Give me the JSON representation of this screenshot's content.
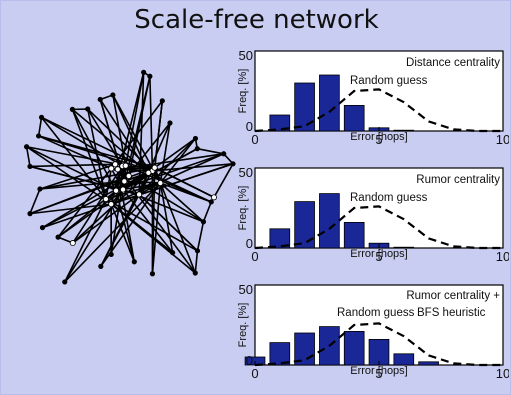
{
  "title": "Scale-free network",
  "colors": {
    "background": "#c9cdf2",
    "panel": "#ffffff",
    "bar": "#1a2796",
    "curve": "#000000"
  },
  "network": {
    "hub_count": 16,
    "peripheral_count": 32,
    "highlighted_nodes": 18
  },
  "chart_data": [
    {
      "type": "bar",
      "title": "",
      "legend": [
        "Distance centrality",
        "Random guess"
      ],
      "xlabel": "Error [hops]",
      "ylabel": "Freq. [%]",
      "xlim": [
        0,
        10
      ],
      "ylim": [
        0,
        50
      ],
      "xticks": [
        "0",
        "5",
        "10"
      ],
      "yticks": [
        "0",
        "50"
      ],
      "x": [
        1,
        2,
        3,
        4,
        5,
        6,
        7
      ],
      "values": [
        10,
        30,
        35,
        16,
        2,
        0.5,
        0
      ],
      "random_guess": {
        "x": [
          0,
          1,
          2,
          3,
          4,
          5,
          6,
          7,
          8,
          9,
          10
        ],
        "values": [
          0,
          1,
          3,
          12,
          25,
          26,
          18,
          6,
          1,
          0,
          0
        ]
      }
    },
    {
      "type": "bar",
      "title": "",
      "legend": [
        "Rumor centrality",
        "Random guess"
      ],
      "xlabel": "Error [hops]",
      "ylabel": "Freq. [%]",
      "xlim": [
        0,
        10
      ],
      "ylim": [
        0,
        50
      ],
      "xticks": [
        "0",
        "5",
        "10"
      ],
      "yticks": [
        "0",
        "50"
      ],
      "x": [
        1,
        2,
        3,
        4,
        5,
        6,
        7
      ],
      "values": [
        12,
        29,
        34,
        16,
        3,
        0.5,
        0
      ],
      "random_guess": {
        "x": [
          0,
          1,
          2,
          3,
          4,
          5,
          6,
          7,
          8,
          9,
          10
        ],
        "values": [
          0,
          1,
          3,
          12,
          25,
          26,
          18,
          6,
          1,
          0,
          0
        ]
      }
    },
    {
      "type": "bar",
      "title": "",
      "legend": [
        "Rumor centrality +",
        "BFS heuristic",
        "Random guess"
      ],
      "xlabel": "Error [hops]",
      "ylabel": "Freq. [%]",
      "xlim": [
        0,
        10
      ],
      "ylim": [
        0,
        50
      ],
      "xticks": [
        "0",
        "5",
        "10"
      ],
      "yticks": [
        "0",
        "50"
      ],
      "x": [
        0,
        1,
        2,
        3,
        4,
        5,
        6,
        7
      ],
      "values": [
        5,
        14,
        20,
        24,
        21,
        16,
        7,
        2
      ],
      "random_guess": {
        "x": [
          0,
          1,
          2,
          3,
          4,
          5,
          6,
          7,
          8,
          9,
          10
        ],
        "values": [
          0,
          1,
          3,
          12,
          25,
          26,
          18,
          6,
          1,
          0,
          0
        ]
      }
    }
  ]
}
